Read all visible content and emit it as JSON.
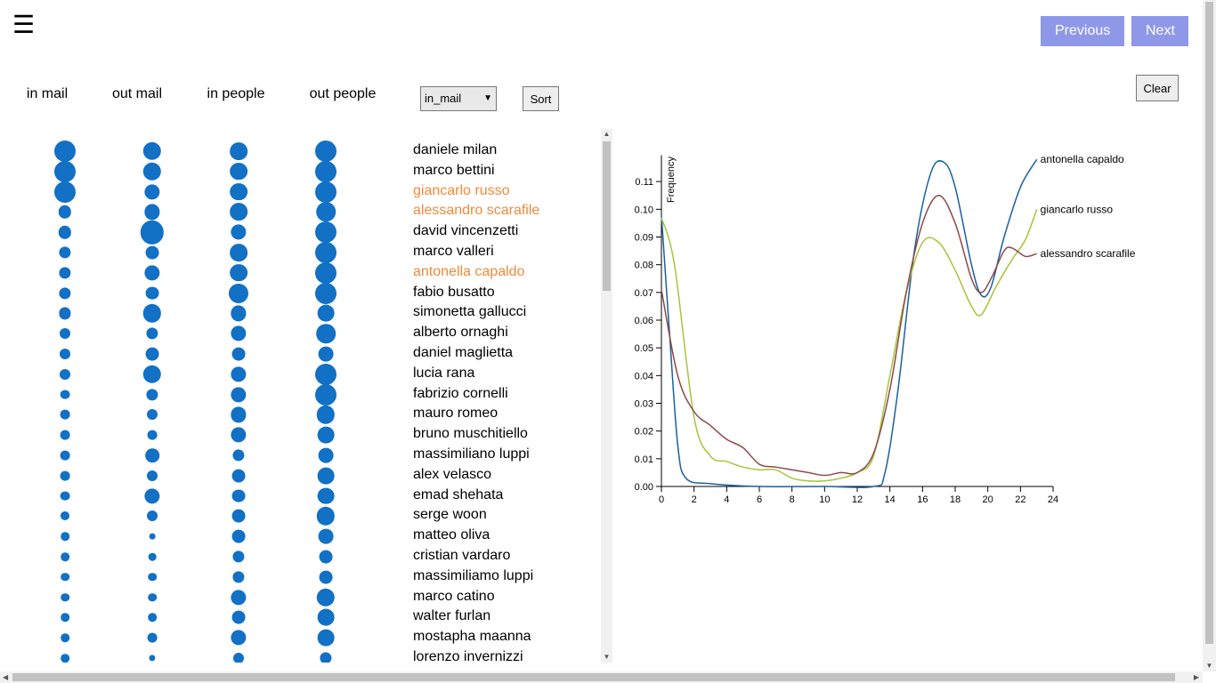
{
  "header": {
    "menu_icon": "☰",
    "prev_label": "Previous",
    "next_label": "Next"
  },
  "columns": [
    "in mail",
    "out mail",
    "in people",
    "out people"
  ],
  "controls": {
    "sort_select_value": "in_mail",
    "sort_label": "Sort",
    "clear_label": "Clear"
  },
  "colors": {
    "bubble": "#1270c5",
    "highlight": "#f08a3a",
    "nav_button": "#8f98e8"
  },
  "people": [
    {
      "name": "daniele milan",
      "highlighted": false,
      "sizes": [
        1.0,
        0.85,
        0.82,
        1.0
      ]
    },
    {
      "name": "marco bettini",
      "highlighted": false,
      "sizes": [
        1.0,
        0.85,
        0.82,
        1.0
      ]
    },
    {
      "name": "giancarlo russo",
      "highlighted": true,
      "sizes": [
        1.0,
        0.72,
        0.82,
        1.0
      ]
    },
    {
      "name": "alessandro scarafile",
      "highlighted": true,
      "sizes": [
        0.6,
        0.72,
        0.82,
        0.9
      ]
    },
    {
      "name": "david vincenzetti",
      "highlighted": false,
      "sizes": [
        0.6,
        1.1,
        0.72,
        1.0
      ]
    },
    {
      "name": "marco valleri",
      "highlighted": false,
      "sizes": [
        0.55,
        0.62,
        0.82,
        1.0
      ]
    },
    {
      "name": "antonella capaldo",
      "highlighted": true,
      "sizes": [
        0.55,
        0.72,
        0.82,
        1.0
      ]
    },
    {
      "name": "fabio busatto",
      "highlighted": false,
      "sizes": [
        0.55,
        0.62,
        0.92,
        1.0
      ]
    },
    {
      "name": "simonetta gallucci",
      "highlighted": false,
      "sizes": [
        0.55,
        0.85,
        0.72,
        0.78
      ]
    },
    {
      "name": "alberto ornaghi",
      "highlighted": false,
      "sizes": [
        0.5,
        0.55,
        0.72,
        0.9
      ]
    },
    {
      "name": "daniel maglietta",
      "highlighted": false,
      "sizes": [
        0.5,
        0.62,
        0.62,
        0.7
      ]
    },
    {
      "name": "lucia rana",
      "highlighted": false,
      "sizes": [
        0.5,
        0.85,
        0.72,
        1.0
      ]
    },
    {
      "name": "fabrizio cornelli",
      "highlighted": false,
      "sizes": [
        0.45,
        0.55,
        0.72,
        1.0
      ]
    },
    {
      "name": "mauro romeo",
      "highlighted": false,
      "sizes": [
        0.45,
        0.5,
        0.72,
        0.85
      ]
    },
    {
      "name": "bruno muschitiello",
      "highlighted": false,
      "sizes": [
        0.45,
        0.45,
        0.72,
        0.78
      ]
    },
    {
      "name": "massimiliano luppi",
      "highlighted": false,
      "sizes": [
        0.45,
        0.65,
        0.55,
        0.7
      ]
    },
    {
      "name": "alex velasco",
      "highlighted": false,
      "sizes": [
        0.45,
        0.5,
        0.62,
        0.78
      ]
    },
    {
      "name": "emad shehata",
      "highlighted": false,
      "sizes": [
        0.45,
        0.72,
        0.62,
        0.78
      ]
    },
    {
      "name": "serge woon",
      "highlighted": false,
      "sizes": [
        0.42,
        0.5,
        0.62,
        0.85
      ]
    },
    {
      "name": "matteo oliva",
      "highlighted": false,
      "sizes": [
        0.4,
        0.28,
        0.62,
        0.7
      ]
    },
    {
      "name": "cristian vardaro",
      "highlighted": false,
      "sizes": [
        0.4,
        0.36,
        0.55,
        0.62
      ]
    },
    {
      "name": "massimiliamo luppi",
      "highlighted": false,
      "sizes": [
        0.4,
        0.4,
        0.55,
        0.62
      ]
    },
    {
      "name": "marco catino",
      "highlighted": false,
      "sizes": [
        0.4,
        0.4,
        0.72,
        0.85
      ]
    },
    {
      "name": "walter furlan",
      "highlighted": false,
      "sizes": [
        0.4,
        0.4,
        0.62,
        0.78
      ]
    },
    {
      "name": "mostapha maanna",
      "highlighted": false,
      "sizes": [
        0.4,
        0.45,
        0.72,
        0.78
      ]
    },
    {
      "name": "lorenzo invernizzi",
      "highlighted": false,
      "sizes": [
        0.4,
        0.3,
        0.5,
        0.55
      ]
    }
  ],
  "chart_data": {
    "type": "line",
    "ylabel": "Frequency",
    "xlim": [
      0,
      24
    ],
    "ylim": [
      0,
      0.12
    ],
    "xticks": [
      0,
      2,
      4,
      6,
      8,
      10,
      12,
      14,
      16,
      18,
      20,
      22,
      24
    ],
    "yticks": [
      "0.00",
      "0.01",
      "0.02",
      "0.03",
      "0.04",
      "0.05",
      "0.06",
      "0.07",
      "0.08",
      "0.09",
      "0.10",
      "0.11"
    ],
    "grid": false,
    "series": [
      {
        "name": "antonella capaldo",
        "color": "#1a5fa0",
        "points": [
          [
            0,
            0.098
          ],
          [
            0.5,
            0.055
          ],
          [
            1,
            0.015
          ],
          [
            1.5,
            0.003
          ],
          [
            3,
            0.001
          ],
          [
            6,
            0.0
          ],
          [
            10,
            0.0
          ],
          [
            13,
            0.0
          ],
          [
            13.7,
            0.005
          ],
          [
            14.5,
            0.035
          ],
          [
            15.5,
            0.085
          ],
          [
            16.5,
            0.113
          ],
          [
            17.3,
            0.117
          ],
          [
            18,
            0.108
          ],
          [
            19,
            0.08
          ],
          [
            19.6,
            0.069
          ],
          [
            20.2,
            0.072
          ],
          [
            21,
            0.09
          ],
          [
            22,
            0.108
          ],
          [
            23,
            0.118
          ]
        ]
      },
      {
        "name": "giancarlo russo",
        "color": "#a8c43a",
        "points": [
          [
            0,
            0.097
          ],
          [
            0.8,
            0.08
          ],
          [
            2,
            0.025
          ],
          [
            3,
            0.011
          ],
          [
            4,
            0.009
          ],
          [
            5,
            0.007
          ],
          [
            6,
            0.006
          ],
          [
            7,
            0.006
          ],
          [
            8,
            0.003
          ],
          [
            9,
            0.002
          ],
          [
            10,
            0.002
          ],
          [
            11,
            0.003
          ],
          [
            12,
            0.005
          ],
          [
            13,
            0.011
          ],
          [
            14,
            0.04
          ],
          [
            15,
            0.07
          ],
          [
            16,
            0.088
          ],
          [
            17,
            0.088
          ],
          [
            18,
            0.078
          ],
          [
            19,
            0.065
          ],
          [
            19.6,
            0.062
          ],
          [
            20.5,
            0.072
          ],
          [
            21.5,
            0.082
          ],
          [
            22.3,
            0.089
          ],
          [
            23,
            0.1
          ]
        ]
      },
      {
        "name": "alessandro scarafile",
        "color": "#8c4a48",
        "points": [
          [
            0,
            0.071
          ],
          [
            1,
            0.04
          ],
          [
            2,
            0.027
          ],
          [
            3,
            0.022
          ],
          [
            4,
            0.017
          ],
          [
            5,
            0.014
          ],
          [
            6,
            0.008
          ],
          [
            7,
            0.007
          ],
          [
            8,
            0.006
          ],
          [
            9,
            0.005
          ],
          [
            10,
            0.004
          ],
          [
            11,
            0.005
          ],
          [
            12,
            0.005
          ],
          [
            13,
            0.012
          ],
          [
            14,
            0.035
          ],
          [
            15,
            0.07
          ],
          [
            16,
            0.095
          ],
          [
            17,
            0.105
          ],
          [
            18,
            0.095
          ],
          [
            19,
            0.075
          ],
          [
            19.6,
            0.07
          ],
          [
            20.2,
            0.075
          ],
          [
            21,
            0.085
          ],
          [
            21.5,
            0.086
          ],
          [
            22.3,
            0.083
          ],
          [
            23,
            0.084
          ]
        ]
      }
    ]
  }
}
